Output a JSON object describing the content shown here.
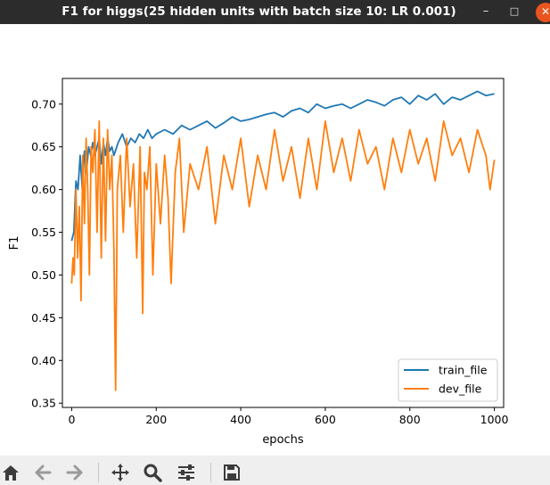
{
  "window": {
    "title": "F1 for higgs(25 hidden units with batch size 10: LR 0.001)",
    "minimize_icon": "minimize-icon",
    "maximize_icon": "maximize-icon",
    "close_icon": "close-icon"
  },
  "toolbar": {
    "icons": [
      "home-icon",
      "back-arrow-icon",
      "forward-arrow-icon",
      "pan-move-icon",
      "zoom-magnifier-icon",
      "configure-subplots-icon",
      "save-floppy-icon"
    ]
  },
  "colors": {
    "train": "#1f77b4",
    "dev": "#ff7f0e",
    "titlebar": "#2c2c2c",
    "close_button": "#e95420",
    "toolbar": "#efefef"
  },
  "chart_data": {
    "type": "line",
    "title": "",
    "xlabel": "epochs",
    "ylabel": "F1",
    "xlim": [
      -22,
      1022
    ],
    "ylim": [
      0.345,
      0.73
    ],
    "xticks": [
      0,
      200,
      400,
      600,
      800,
      1000
    ],
    "xtick_labels": [
      "0",
      "200",
      "400",
      "600",
      "800",
      "1000"
    ],
    "yticks": [
      0.35,
      0.4,
      0.45,
      0.5,
      0.55,
      0.6,
      0.65,
      0.7
    ],
    "ytick_labels": [
      "0.35",
      "0.40",
      "0.45",
      "0.50",
      "0.55",
      "0.60",
      "0.65",
      "0.70"
    ],
    "legend": {
      "position": "lower-right",
      "entries": [
        "train_file",
        "dev_file"
      ]
    },
    "grid": false,
    "series": [
      {
        "name": "train_file",
        "x": [
          0,
          5,
          10,
          15,
          20,
          25,
          30,
          35,
          40,
          45,
          50,
          55,
          60,
          65,
          70,
          75,
          80,
          85,
          90,
          95,
          100,
          110,
          120,
          130,
          140,
          150,
          160,
          170,
          180,
          190,
          200,
          220,
          240,
          260,
          280,
          300,
          320,
          340,
          360,
          380,
          400,
          420,
          440,
          460,
          480,
          500,
          520,
          540,
          560,
          580,
          600,
          620,
          640,
          660,
          680,
          700,
          720,
          740,
          760,
          780,
          800,
          820,
          840,
          860,
          880,
          900,
          920,
          940,
          960,
          980,
          1000
        ],
        "y": [
          0.54,
          0.55,
          0.61,
          0.6,
          0.64,
          0.6,
          0.645,
          0.62,
          0.65,
          0.64,
          0.655,
          0.64,
          0.65,
          0.66,
          0.63,
          0.655,
          0.64,
          0.66,
          0.645,
          0.65,
          0.64,
          0.655,
          0.665,
          0.65,
          0.66,
          0.655,
          0.665,
          0.66,
          0.67,
          0.66,
          0.665,
          0.67,
          0.665,
          0.675,
          0.67,
          0.675,
          0.68,
          0.672,
          0.678,
          0.685,
          0.68,
          0.682,
          0.685,
          0.688,
          0.69,
          0.685,
          0.692,
          0.695,
          0.69,
          0.7,
          0.695,
          0.698,
          0.7,
          0.695,
          0.7,
          0.705,
          0.702,
          0.698,
          0.705,
          0.708,
          0.7,
          0.71,
          0.705,
          0.712,
          0.7,
          0.708,
          0.705,
          0.71,
          0.715,
          0.71,
          0.712
        ]
      },
      {
        "name": "dev_file",
        "x": [
          0,
          3,
          6,
          10,
          14,
          18,
          22,
          26,
          30,
          34,
          38,
          42,
          46,
          50,
          55,
          60,
          65,
          70,
          75,
          80,
          85,
          90,
          95,
          100,
          104,
          108,
          115,
          122,
          130,
          138,
          146,
          154,
          162,
          168,
          172,
          178,
          185,
          192,
          200,
          210,
          220,
          228,
          235,
          245,
          255,
          265,
          280,
          300,
          320,
          340,
          360,
          380,
          400,
          420,
          440,
          460,
          480,
          500,
          520,
          540,
          560,
          580,
          600,
          620,
          640,
          660,
          680,
          700,
          720,
          740,
          760,
          780,
          800,
          820,
          840,
          860,
          880,
          900,
          920,
          940,
          960,
          980,
          990,
          1000
        ],
        "y": [
          0.49,
          0.52,
          0.5,
          0.6,
          0.52,
          0.58,
          0.47,
          0.64,
          0.56,
          0.66,
          0.6,
          0.5,
          0.65,
          0.62,
          0.67,
          0.55,
          0.68,
          0.52,
          0.66,
          0.54,
          0.67,
          0.6,
          0.64,
          0.53,
          0.365,
          0.6,
          0.64,
          0.55,
          0.66,
          0.58,
          0.63,
          0.52,
          0.65,
          0.455,
          0.62,
          0.6,
          0.65,
          0.5,
          0.63,
          0.56,
          0.64,
          0.59,
          0.49,
          0.62,
          0.66,
          0.55,
          0.63,
          0.6,
          0.65,
          0.56,
          0.64,
          0.6,
          0.66,
          0.58,
          0.64,
          0.6,
          0.67,
          0.61,
          0.65,
          0.59,
          0.66,
          0.6,
          0.68,
          0.62,
          0.66,
          0.61,
          0.67,
          0.63,
          0.65,
          0.6,
          0.66,
          0.62,
          0.67,
          0.63,
          0.66,
          0.61,
          0.68,
          0.64,
          0.66,
          0.62,
          0.67,
          0.64,
          0.6,
          0.635
        ]
      }
    ]
  }
}
